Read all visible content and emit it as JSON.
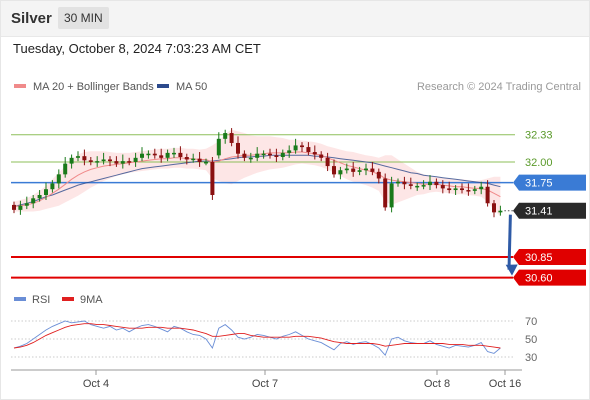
{
  "header": {
    "title": "Silver",
    "timeframe": "30 MIN"
  },
  "timestamp": "Tuesday, October 8, 2024 7:03:23 AM CET",
  "colors": {
    "support": "#e00000",
    "pivot": "#3a7bd5",
    "resistance": "#8dbf5a",
    "bollinger": "#fde3e3",
    "ma20": "#f08a8a",
    "ma50": "#2c4a8c",
    "candle_up": "#1a7a1a",
    "candle_down": "#8a1010",
    "rsi": "#6a8ed6",
    "rsi_ma": "#e02020",
    "arrow": "#2e5aa6"
  },
  "chart_data": [
    {
      "type": "candlestick",
      "legend": [
        {
          "label": "MA 20 + Bollinger Bands",
          "color": "#f08a8a"
        },
        {
          "label": "MA 50",
          "color": "#2c4a8c"
        }
      ],
      "credit": "Research © 2024 Trading Central",
      "ylim": [
        30.45,
        32.75
      ],
      "x_ticks": [
        "Oct 4",
        "Oct 7",
        "Oct 8",
        "Oct 16"
      ],
      "candles": {
        "open": [
          31.48,
          31.42,
          31.47,
          31.5,
          31.56,
          31.6,
          31.67,
          31.74,
          31.85,
          31.98,
          32.05,
          32.07,
          32.02,
          32.0,
          32.01,
          32.03,
          32.01,
          31.98,
          32.01,
          32.0,
          32.05,
          32.1,
          32.1,
          32.08,
          32.05,
          32.11,
          32.11,
          32.06,
          32.03,
          32.04,
          32.0,
          32.0,
          32.08,
          32.28,
          32.35,
          32.23,
          32.1,
          32.05,
          32.05,
          32.1,
          32.1,
          32.08,
          32.06,
          32.11,
          32.14,
          32.2,
          32.18,
          32.12,
          32.09,
          32.05,
          31.95,
          31.85,
          31.9,
          31.92,
          31.88,
          31.9,
          31.92,
          31.88,
          31.8,
          31.45,
          31.74,
          31.76,
          31.73,
          31.71,
          31.71,
          31.72,
          31.76,
          31.72,
          31.68,
          31.66,
          31.68,
          31.66,
          31.65,
          31.67,
          31.7,
          31.5,
          31.39
        ],
        "close": [
          31.42,
          31.47,
          31.5,
          31.56,
          31.6,
          31.67,
          31.74,
          31.85,
          31.98,
          32.05,
          32.07,
          32.02,
          32.0,
          32.01,
          32.03,
          32.01,
          31.98,
          32.01,
          32.0,
          32.05,
          32.1,
          32.1,
          32.08,
          32.05,
          32.11,
          32.11,
          32.06,
          32.03,
          32.04,
          32.0,
          32.0,
          31.6,
          32.28,
          32.35,
          32.23,
          32.1,
          32.05,
          32.05,
          32.1,
          32.1,
          32.08,
          32.06,
          32.11,
          32.14,
          32.2,
          32.18,
          32.12,
          32.09,
          32.05,
          31.95,
          31.85,
          31.9,
          31.92,
          31.88,
          31.9,
          31.92,
          31.88,
          31.8,
          31.45,
          31.74,
          31.76,
          31.73,
          31.71,
          31.71,
          31.72,
          31.76,
          31.72,
          31.68,
          31.66,
          31.68,
          31.66,
          31.65,
          31.67,
          31.7,
          31.5,
          31.39,
          31.41
        ]
      },
      "ma20": [
        31.46,
        31.47,
        31.48,
        31.5,
        31.53,
        31.57,
        31.62,
        31.67,
        31.73,
        31.79,
        31.84,
        31.88,
        31.91,
        31.93,
        31.95,
        31.96,
        31.97,
        31.98,
        31.99,
        32.0,
        32.01,
        32.02,
        32.03,
        32.04,
        32.04,
        32.05,
        32.05,
        32.04,
        32.04,
        32.03,
        32.03,
        32.0,
        32.01,
        32.04,
        32.06,
        32.07,
        32.08,
        32.08,
        32.09,
        32.1,
        32.11,
        32.11,
        32.11,
        32.11,
        32.12,
        32.12,
        32.11,
        32.1,
        32.08,
        32.05,
        32.02,
        31.99,
        31.96,
        31.94,
        31.92,
        31.9,
        31.88,
        31.85,
        31.8,
        31.78,
        31.77,
        31.76,
        31.75,
        31.74,
        31.73,
        31.73,
        31.73,
        31.72,
        31.71,
        31.7,
        31.7,
        31.69,
        31.68,
        31.68,
        31.66,
        31.62,
        31.58
      ],
      "ma50": [
        31.46,
        31.48,
        31.5,
        31.52,
        31.55,
        31.58,
        31.6,
        31.63,
        31.66,
        31.69,
        31.72,
        31.74,
        31.76,
        31.78,
        31.8,
        31.82,
        31.84,
        31.86,
        31.88,
        31.9,
        31.92,
        31.93,
        31.94,
        31.95,
        31.96,
        31.97,
        31.98,
        31.99,
        32.0,
        32.01,
        32.01,
        32.01,
        32.02,
        32.03,
        32.04,
        32.05,
        32.06,
        32.06,
        32.07,
        32.07,
        32.08,
        32.08,
        32.08,
        32.08,
        32.08,
        32.08,
        32.08,
        32.07,
        32.07,
        32.06,
        32.05,
        32.04,
        32.03,
        32.02,
        32.01,
        32.0,
        31.99,
        31.97,
        31.95,
        31.93,
        31.91,
        31.89,
        31.87,
        31.86,
        31.84,
        31.83,
        31.82,
        31.81,
        31.8,
        31.79,
        31.78,
        31.77,
        31.76,
        31.75,
        31.74,
        31.72,
        31.7
      ],
      "bb_width": [
        0.06,
        0.07,
        0.08,
        0.1,
        0.12,
        0.14,
        0.17,
        0.2,
        0.22,
        0.24,
        0.25,
        0.24,
        0.22,
        0.2,
        0.18,
        0.16,
        0.14,
        0.13,
        0.12,
        0.12,
        0.12,
        0.12,
        0.12,
        0.12,
        0.12,
        0.12,
        0.12,
        0.12,
        0.12,
        0.12,
        0.13,
        0.2,
        0.24,
        0.3,
        0.33,
        0.3,
        0.27,
        0.24,
        0.22,
        0.21,
        0.2,
        0.19,
        0.18,
        0.16,
        0.15,
        0.14,
        0.14,
        0.14,
        0.14,
        0.14,
        0.15,
        0.16,
        0.17,
        0.18,
        0.18,
        0.18,
        0.19,
        0.2,
        0.28,
        0.3,
        0.26,
        0.22,
        0.18,
        0.14,
        0.12,
        0.1,
        0.09,
        0.09,
        0.09,
        0.09,
        0.09,
        0.09,
        0.09,
        0.1,
        0.14,
        0.2,
        0.24
      ],
      "levels": [
        {
          "value": 32.33,
          "label": "32.33",
          "kind": "resistance"
        },
        {
          "value": 32.0,
          "label": "32.00",
          "kind": "resistance"
        },
        {
          "value": 31.75,
          "label": "31.75",
          "kind": "pivot"
        },
        {
          "value": 31.41,
          "label": "31.41",
          "kind": "last"
        },
        {
          "value": 30.85,
          "label": "30.85",
          "kind": "support"
        },
        {
          "value": 30.6,
          "label": "30.60",
          "kind": "support"
        }
      ],
      "forecast_arrow": {
        "from": 31.41,
        "to": 30.6
      }
    },
    {
      "type": "line",
      "legend": [
        {
          "label": "RSI",
          "color": "#6a8ed6"
        },
        {
          "label": "9MA",
          "color": "#e02020"
        }
      ],
      "ylim": [
        20,
        80
      ],
      "y_ticks": [
        "70",
        "50",
        "30"
      ],
      "rsi": [
        40,
        42,
        45,
        50,
        55,
        60,
        64,
        67,
        70,
        68,
        69,
        70,
        66,
        64,
        62,
        64,
        60,
        62,
        58,
        62,
        65,
        66,
        64,
        61,
        58,
        64,
        62,
        58,
        55,
        54,
        50,
        40,
        62,
        66,
        60,
        52,
        50,
        52,
        55,
        54,
        52,
        50,
        53,
        55,
        58,
        54,
        50,
        48,
        46,
        42,
        38,
        45,
        47,
        44,
        46,
        47,
        44,
        40,
        32,
        50,
        52,
        48,
        46,
        45,
        45,
        48,
        44,
        42,
        40,
        43,
        42,
        41,
        43,
        46,
        36,
        34,
        40
      ],
      "rsi_ma": [
        40,
        41,
        43,
        46,
        50,
        54,
        57,
        60,
        63,
        65,
        66,
        67,
        67,
        66,
        66,
        65,
        64,
        63,
        62,
        62,
        62,
        63,
        63,
        63,
        62,
        62,
        62,
        61,
        60,
        58,
        56,
        53,
        53,
        54,
        55,
        56,
        56,
        54,
        53,
        52,
        52,
        52,
        52,
        52,
        53,
        53,
        53,
        52,
        51,
        49,
        47,
        46,
        45,
        45,
        45,
        45,
        45,
        44,
        42,
        43,
        44,
        45,
        45,
        45,
        45,
        45,
        45,
        45,
        44,
        44,
        44,
        43,
        43,
        43,
        42,
        41,
        40
      ]
    }
  ]
}
